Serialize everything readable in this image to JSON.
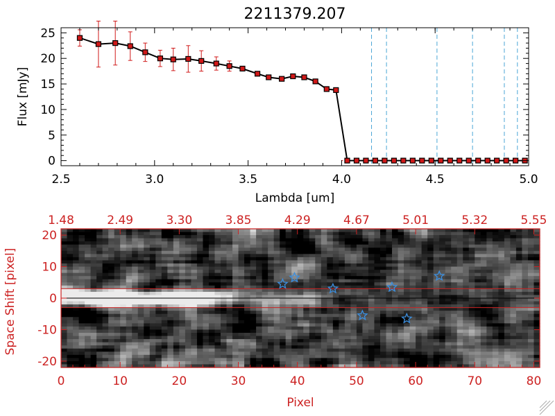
{
  "colors": {
    "accent_red": "#cc2222",
    "star_blue": "#3b8fe0",
    "dash_cyan": "#4aa6d6",
    "line_black": "#000000",
    "marker_red": "#d01818"
  },
  "chart_data": [
    {
      "type": "line",
      "title": "2211379.207",
      "xlabel": "Lambda [um]",
      "ylabel": "Flux [mJy]",
      "xlim": [
        2.5,
        5.0
      ],
      "ylim": [
        -1,
        26
      ],
      "x_ticks": [
        "2.5",
        "3.0",
        "3.5",
        "4.0",
        "4.5",
        "5.0"
      ],
      "x_tick_values": [
        2.5,
        3.0,
        3.5,
        4.0,
        4.5,
        5.0
      ],
      "y_ticks": [
        "0",
        "5",
        "10",
        "15",
        "20",
        "25"
      ],
      "y_tick_values": [
        0,
        5,
        10,
        15,
        20,
        25
      ],
      "grid": false,
      "series": [
        {
          "x": [
            2.6,
            2.7,
            2.79,
            2.87,
            2.95,
            3.03,
            3.1,
            3.18,
            3.25,
            3.33,
            3.4,
            3.47,
            3.55,
            3.61,
            3.68,
            3.74,
            3.8,
            3.86,
            3.92,
            3.97,
            4.03,
            4.08,
            4.13,
            4.18,
            4.23,
            4.28,
            4.33,
            4.38,
            4.43,
            4.48,
            4.53,
            4.58,
            4.63,
            4.68,
            4.73,
            4.78,
            4.83,
            4.88,
            4.93,
            4.98
          ],
          "y": [
            24.0,
            22.8,
            23.0,
            22.4,
            21.2,
            20.0,
            19.8,
            19.9,
            19.5,
            19.0,
            18.5,
            18.0,
            17.0,
            16.3,
            16.0,
            16.5,
            16.3,
            15.5,
            14.0,
            13.8,
            0,
            0,
            0,
            0,
            0,
            0,
            0,
            0,
            0,
            0,
            0,
            0,
            0,
            0,
            0,
            0,
            0,
            0,
            0,
            0
          ],
          "y_err": [
            1.6,
            4.5,
            4.3,
            2.8,
            1.8,
            1.6,
            2.2,
            2.6,
            2.0,
            1.3,
            1.0,
            0,
            0,
            0,
            0,
            0,
            0,
            0,
            0,
            0,
            0,
            0,
            0,
            0,
            0,
            0,
            0,
            0,
            0,
            0,
            0,
            0,
            0,
            0,
            0,
            0,
            0,
            0,
            0,
            0
          ]
        }
      ],
      "vertical_dashed_lines_x": [
        4.16,
        4.24,
        4.51,
        4.7,
        4.87,
        4.94
      ]
    },
    {
      "type": "heatmap",
      "xlabel": "Pixel",
      "ylabel": "Space Shift [pixel]",
      "xlim": [
        0,
        81
      ],
      "ylim": [
        -22,
        22
      ],
      "x_ticks": [
        "0",
        "10",
        "20",
        "30",
        "40",
        "50",
        "60",
        "70",
        "80"
      ],
      "x_tick_values": [
        0,
        10,
        20,
        30,
        40,
        50,
        60,
        70,
        80
      ],
      "top_axis_ticks": [
        "1.48",
        "2.49",
        "3.30",
        "3.85",
        "4.29",
        "4.67",
        "5.01",
        "5.32",
        "5.55"
      ],
      "top_axis_tick_values": [
        0,
        10,
        20,
        30,
        40,
        50,
        60,
        70,
        80
      ],
      "y_ticks": [
        "-20",
        "-10",
        "0",
        "10",
        "20"
      ],
      "y_tick_values": [
        -20,
        -10,
        0,
        10,
        20
      ],
      "horizontal_lines_y": [
        3,
        -3
      ],
      "center_line_y": 0,
      "stars": [
        {
          "x": 37.5,
          "y": 4.5
        },
        {
          "x": 39.5,
          "y": 6.5
        },
        {
          "x": 46.0,
          "y": 3.0
        },
        {
          "x": 56.0,
          "y": 3.5
        },
        {
          "x": 64.0,
          "y": 7.0
        },
        {
          "x": 51.0,
          "y": -5.5
        },
        {
          "x": 58.5,
          "y": -6.5
        }
      ]
    }
  ]
}
